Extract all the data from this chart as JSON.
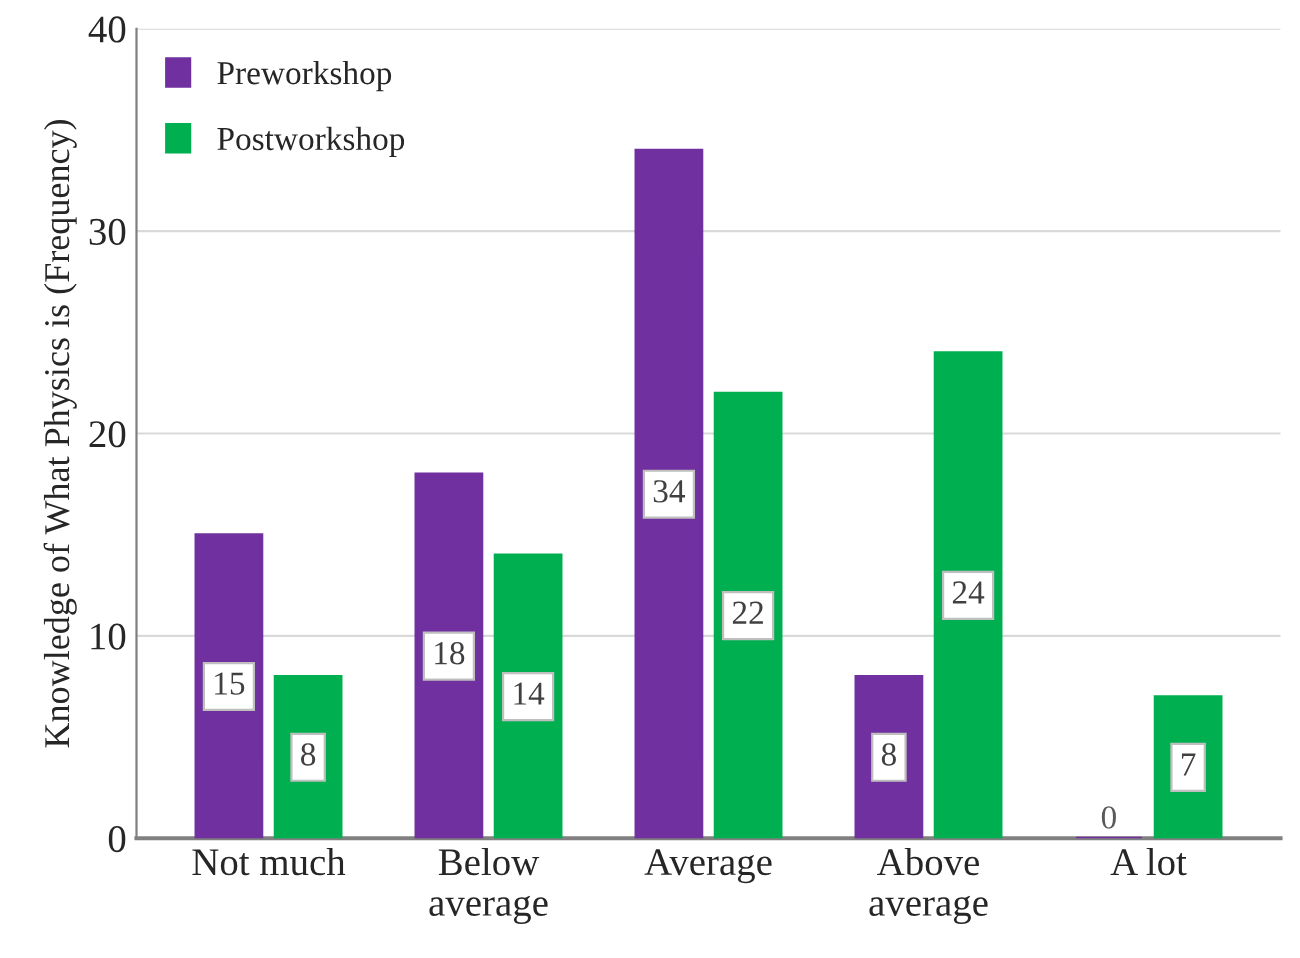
{
  "chart_data": {
    "type": "bar",
    "ylabel": "Knowledge of What Physics is (Frequency)",
    "categories": [
      "Not much",
      "Below\naverage",
      "Average",
      "Above\naverage",
      "A lot"
    ],
    "series": [
      {
        "name": "Preworkshop",
        "color": "#7030a0",
        "values": [
          15,
          18,
          34,
          8,
          0
        ]
      },
      {
        "name": "Postworkshop",
        "color": "#00b050",
        "values": [
          8,
          14,
          22,
          24,
          7
        ]
      }
    ],
    "ylim": [
      0,
      40
    ],
    "yticks": [
      0,
      10,
      20,
      30,
      40
    ],
    "grid": "y",
    "legend": "top left",
    "data_labels": true
  }
}
